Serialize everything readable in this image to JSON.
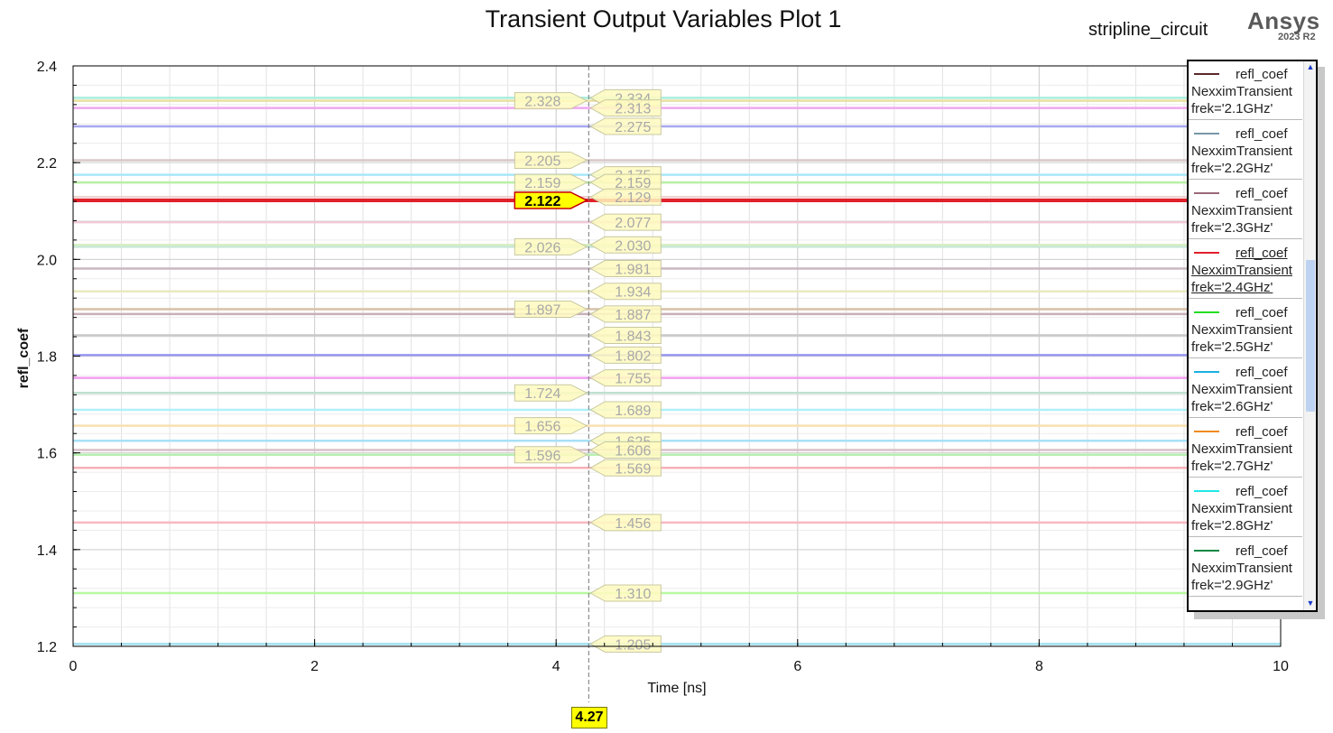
{
  "window": {
    "title": "Transient Output Variables Plot 1",
    "project": "stripline_circuit",
    "brand": "Ansys",
    "version": "2023 R2"
  },
  "legend": {
    "entries": [
      {
        "line1": "refl_coef",
        "line2": "NexximTransient",
        "line3": "frek='2.1GHz'",
        "color": "#5a2a2a",
        "active": false
      },
      {
        "line1": "refl_coef",
        "line2": "NexximTransient",
        "line3": "frek='2.2GHz'",
        "color": "#7896a8",
        "active": false
      },
      {
        "line1": "refl_coef",
        "line2": "NexximTransient",
        "line3": "frek='2.3GHz'",
        "color": "#9a6878",
        "active": false
      },
      {
        "line1": "refl_coef",
        "line2": "NexximTransient",
        "line3": "frek='2.4GHz'",
        "color": "#e0202a",
        "active": true
      },
      {
        "line1": "refl_coef",
        "line2": "NexximTransient",
        "line3": "frek='2.5GHz'",
        "color": "#22dd22",
        "active": false
      },
      {
        "line1": "refl_coef",
        "line2": "NexximTransient",
        "line3": "frek='2.6GHz'",
        "color": "#1ab0e0",
        "active": false
      },
      {
        "line1": "refl_coef",
        "line2": "NexximTransient",
        "line3": "frek='2.7GHz'",
        "color": "#f08a20",
        "active": false
      },
      {
        "line1": "refl_coef",
        "line2": "NexximTransient",
        "line3": "frek='2.8GHz'",
        "color": "#20e8e8",
        "active": false
      },
      {
        "line1": "refl_coef",
        "line2": "NexximTransient",
        "line3": "frek='2.9GHz'",
        "color": "#118844",
        "active": false
      }
    ]
  },
  "cursor": {
    "x": 4.27,
    "label": "4.27"
  },
  "chart_data": {
    "type": "line",
    "title": "Transient Output Variables Plot 1",
    "xlabel": "Time [ns]",
    "ylabel": "refl_coef",
    "xlim": [
      0,
      10
    ],
    "ylim": [
      1.2,
      2.4
    ],
    "x_ticks": [
      0,
      2,
      4,
      6,
      8,
      10
    ],
    "y_ticks": [
      1.2,
      1.4,
      1.6,
      1.8,
      2.0,
      2.2,
      2.4
    ],
    "x_tick_labels": [
      "0",
      "2",
      "4",
      "6",
      "8",
      "10"
    ],
    "y_tick_labels": [
      "1.2",
      "1.4",
      "1.6",
      "1.8",
      "2.0",
      "2.2",
      "2.4"
    ],
    "grid": true,
    "legend_placement": "right",
    "series": [
      {
        "value": 2.334,
        "color": "#aaeedd"
      },
      {
        "value": 2.328,
        "color": "#e8e0a0"
      },
      {
        "value": 2.313,
        "color": "#f0a8f0"
      },
      {
        "value": 2.275,
        "color": "#a8a8f0"
      },
      {
        "value": 2.205,
        "color": "#d8c8c8"
      },
      {
        "value": 2.175,
        "color": "#a8e8f8"
      },
      {
        "value": 2.159,
        "color": "#e8f0a0"
      },
      {
        "value": 2.159,
        "color": "#b8f0a8"
      },
      {
        "value": 2.129,
        "color": "#f0d0d0"
      },
      {
        "value": 2.122,
        "color": "#e0202a",
        "active": true
      },
      {
        "value": 2.077,
        "color": "#f0c8d8"
      },
      {
        "value": 2.03,
        "color": "#d8f0c0"
      },
      {
        "value": 2.026,
        "color": "#c8e8d8"
      },
      {
        "value": 1.981,
        "color": "#c8b8c0"
      },
      {
        "value": 1.934,
        "color": "#e8e8c0"
      },
      {
        "value": 1.897,
        "color": "#d8c0a8"
      },
      {
        "value": 1.887,
        "color": "#c8b0b8"
      },
      {
        "value": 1.843,
        "color": "#c8c8c8"
      },
      {
        "value": 1.802,
        "color": "#9898f0"
      },
      {
        "value": 1.755,
        "color": "#f0a0f0"
      },
      {
        "value": 1.724,
        "color": "#c0e0d0"
      },
      {
        "value": 1.689,
        "color": "#b0f0f8"
      },
      {
        "value": 1.656,
        "color": "#f8e0b0"
      },
      {
        "value": 1.625,
        "color": "#a8e0f8"
      },
      {
        "value": 1.606,
        "color": "#d8c0c8"
      },
      {
        "value": 1.596,
        "color": "#b8f0b0"
      },
      {
        "value": 1.569,
        "color": "#f8b0b8"
      },
      {
        "value": 1.456,
        "color": "#f8b8c0"
      },
      {
        "value": 1.31,
        "color": "#b8f8a0"
      },
      {
        "value": 1.205,
        "color": "#a0e0f0"
      }
    ],
    "marker_labels": [
      {
        "value": 2.328,
        "label": "2.328",
        "side": "left"
      },
      {
        "value": 2.334,
        "label": "2.334",
        "side": "right"
      },
      {
        "value": 2.313,
        "label": "2.313",
        "side": "right"
      },
      {
        "value": 2.275,
        "label": "2.275",
        "side": "right"
      },
      {
        "value": 2.205,
        "label": "2.205",
        "side": "left"
      },
      {
        "value": 2.175,
        "label": "2.175",
        "side": "right"
      },
      {
        "value": 2.159,
        "label": "2.159",
        "side": "left"
      },
      {
        "value": 2.159,
        "label": "2.159",
        "side": "right"
      },
      {
        "value": 2.122,
        "label": "2.122",
        "side": "left",
        "active": true
      },
      {
        "value": 2.129,
        "label": "2.129",
        "side": "right"
      },
      {
        "value": 2.077,
        "label": "2.077",
        "side": "right"
      },
      {
        "value": 2.026,
        "label": "2.026",
        "side": "left"
      },
      {
        "value": 2.03,
        "label": "2.030",
        "side": "right"
      },
      {
        "value": 1.981,
        "label": "1.981",
        "side": "right"
      },
      {
        "value": 1.934,
        "label": "1.934",
        "side": "right"
      },
      {
        "value": 1.897,
        "label": "1.897",
        "side": "left"
      },
      {
        "value": 1.887,
        "label": "1.887",
        "side": "right"
      },
      {
        "value": 1.843,
        "label": "1.843",
        "side": "right"
      },
      {
        "value": 1.802,
        "label": "1.802",
        "side": "right"
      },
      {
        "value": 1.755,
        "label": "1.755",
        "side": "right"
      },
      {
        "value": 1.724,
        "label": "1.724",
        "side": "left"
      },
      {
        "value": 1.689,
        "label": "1.689",
        "side": "right"
      },
      {
        "value": 1.656,
        "label": "1.656",
        "side": "left"
      },
      {
        "value": 1.625,
        "label": "1.625",
        "side": "right"
      },
      {
        "value": 1.606,
        "label": "1.606",
        "side": "right"
      },
      {
        "value": 1.596,
        "label": "1.596",
        "side": "left"
      },
      {
        "value": 1.569,
        "label": "1.569",
        "side": "right"
      },
      {
        "value": 1.456,
        "label": "1.456",
        "side": "right"
      },
      {
        "value": 1.31,
        "label": "1.310",
        "side": "right"
      },
      {
        "value": 1.205,
        "label": "1.205",
        "side": "right"
      }
    ]
  }
}
